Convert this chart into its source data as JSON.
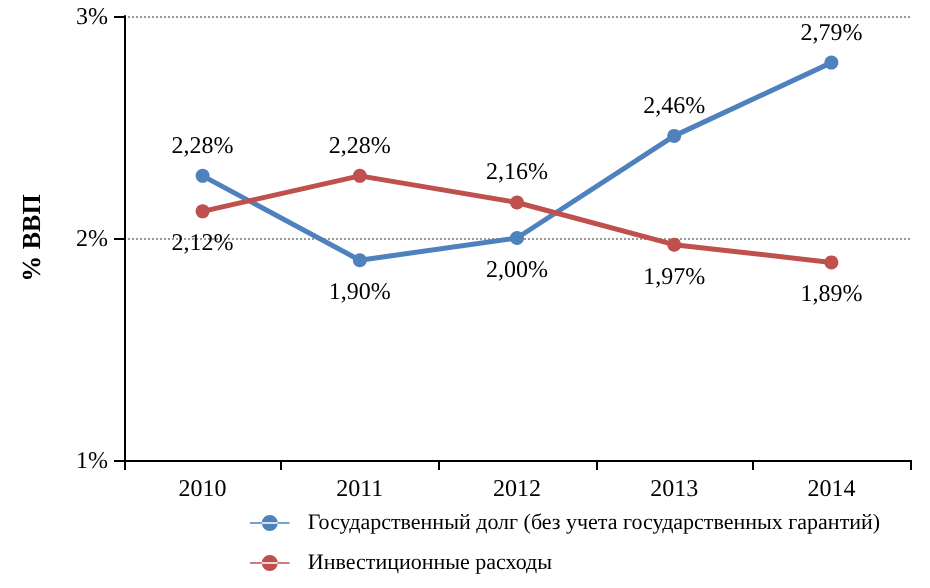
{
  "chart_data": {
    "type": "line",
    "ylabel": "% ВВП",
    "categories": [
      "2010",
      "2011",
      "2012",
      "2013",
      "2014"
    ],
    "series": [
      {
        "name": "Государственный долг (без учета государственных гарантий)",
        "color": "#4f81bd",
        "values": [
          2.28,
          1.9,
          2.0,
          2.46,
          2.79
        ],
        "value_labels": [
          "2,28%",
          "1,90%",
          "2,00%",
          "2,46%",
          "2,79%"
        ]
      },
      {
        "name": "Инвестиционные расходы",
        "color": "#c0504d",
        "values": [
          2.12,
          2.28,
          2.16,
          1.97,
          1.89
        ],
        "value_labels": [
          "2,12%",
          "2,28%",
          "2,16%",
          "1,97%",
          "1,89%"
        ]
      }
    ],
    "ylim": [
      1,
      3
    ],
    "yticks": [
      {
        "value": 1,
        "label": "1%"
      },
      {
        "value": 2,
        "label": "2%"
      },
      {
        "value": 3,
        "label": "3%"
      }
    ],
    "grid": "y",
    "legend": "bottom",
    "marker": "circle",
    "line_style": "solid"
  }
}
